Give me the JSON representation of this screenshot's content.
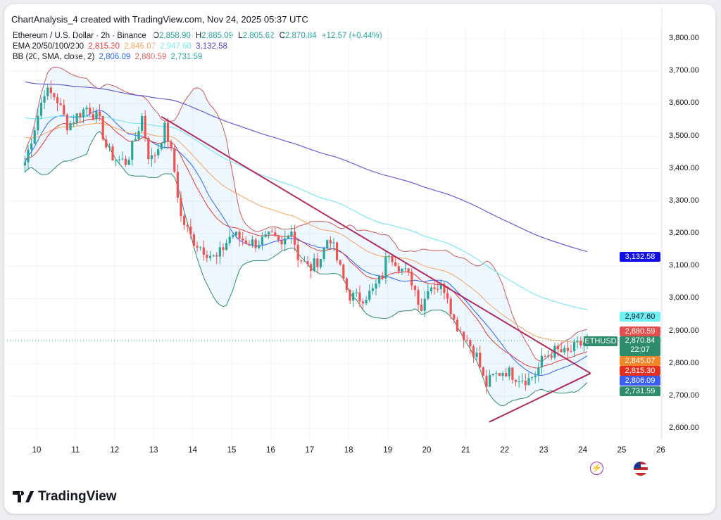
{
  "header": {
    "title": "ChartAnalysis_4 created with TradingView.com, Nov 24, 2025 05:37 UTC"
  },
  "legend": {
    "symbol": "Ethereum / U.S. Dollar · 2h · Binance",
    "o_label": "O",
    "o": "2,858.90",
    "h_label": "H",
    "h": "2,885.09",
    "l_label": "L",
    "l": "2,805.62",
    "c_label": "C",
    "c": "2,870.84",
    "change": "+12.57 (+0.44%)",
    "ema_label": "EMA 20/50/100/200",
    "ema20": "2,815.30",
    "ema50": "2,845.07",
    "ema100": "2,947.60",
    "ema200": "3,132.58",
    "bb_label": "BB (20, SMA, close, 2)",
    "bb_basis": "2,806.09",
    "bb_upper": "2,880.59",
    "bb_lower": "2,731.59"
  },
  "price_labels": {
    "ema200": "3,132.58",
    "ema100": "2,947.60",
    "bb_upper": "2,880.59",
    "last": "2,870.84",
    "countdown": "22:07",
    "symbol_tag": "ETHUSD",
    "ema50": "2,845.07",
    "ema20": "2,815.30",
    "bb_basis": "2,806.09",
    "bb_lower": "2,731.59"
  },
  "colors": {
    "up": "#26a69a",
    "down": "#ef5350",
    "ema20": "#e53935",
    "ema50": "#f7a35c",
    "ema100": "#7ee8f0",
    "ema200": "#6a5fd6",
    "bb_basis": "#2962ff",
    "bb_band": "#c95a5a",
    "bb_lower": "#2e8b6e",
    "trend": "#b0285c"
  },
  "footer": {
    "brand": "TradingView"
  },
  "chart_data": {
    "type": "candlestick",
    "title": "Ethereum / U.S. Dollar · 2h · Binance",
    "y_ticks": [
      3800,
      3700,
      3600,
      3500,
      3400,
      3300,
      3200,
      3100,
      3000,
      2900,
      2800,
      2700,
      2600
    ],
    "y_tick_labels": [
      "3,800.00",
      "3,700.00",
      "3,600.00",
      "3,500.00",
      "3,400.00",
      "3,300.00",
      "3,200.00",
      "3,100.00",
      "3,000.00",
      "2,900.00",
      "2,800.00",
      "2,700.00",
      "2,600.00"
    ],
    "x_ticks": [
      "10",
      "11",
      "12",
      "13",
      "14",
      "15",
      "16",
      "17",
      "18",
      "19",
      "20",
      "21",
      "22",
      "23",
      "24",
      "25",
      "26"
    ],
    "ylim": [
      2540,
      3840
    ],
    "close_waypoints": [
      [
        9.7,
        3420
      ],
      [
        10,
        3550
      ],
      [
        10.2,
        3640
      ],
      [
        10.5,
        3620
      ],
      [
        10.8,
        3530
      ],
      [
        11,
        3560
      ],
      [
        11.3,
        3590
      ],
      [
        11.6,
        3550
      ],
      [
        11.8,
        3460
      ],
      [
        12,
        3430
      ],
      [
        12.3,
        3420
      ],
      [
        12.5,
        3480
      ],
      [
        12.7,
        3560
      ],
      [
        12.9,
        3420
      ],
      [
        13.1,
        3460
      ],
      [
        13.3,
        3530
      ],
      [
        13.5,
        3420
      ],
      [
        13.7,
        3250
      ],
      [
        14,
        3180
      ],
      [
        14.3,
        3150
      ],
      [
        14.6,
        3120
      ],
      [
        15,
        3200
      ],
      [
        15.3,
        3180
      ],
      [
        15.6,
        3170
      ],
      [
        16,
        3190
      ],
      [
        16.3,
        3160
      ],
      [
        16.5,
        3230
      ],
      [
        16.7,
        3130
      ],
      [
        17,
        3090
      ],
      [
        17.3,
        3130
      ],
      [
        17.5,
        3200
      ],
      [
        17.7,
        3120
      ],
      [
        18,
        3010
      ],
      [
        18.3,
        3000
      ],
      [
        18.6,
        3020
      ],
      [
        18.9,
        3080
      ],
      [
        19,
        3150
      ],
      [
        19.3,
        3100
      ],
      [
        19.6,
        3060
      ],
      [
        19.9,
        2960
      ],
      [
        20,
        3040
      ],
      [
        20.2,
        3040
      ],
      [
        20.5,
        3030
      ],
      [
        20.7,
        2930
      ],
      [
        21,
        2880
      ],
      [
        21.3,
        2820
      ],
      [
        21.5,
        2730
      ],
      [
        21.7,
        2760
      ],
      [
        22,
        2780
      ],
      [
        22.3,
        2760
      ],
      [
        22.6,
        2750
      ],
      [
        22.8,
        2770
      ],
      [
        23,
        2820
      ],
      [
        23.3,
        2840
      ],
      [
        23.6,
        2830
      ],
      [
        23.8,
        2850
      ],
      [
        24.15,
        2870.84
      ]
    ],
    "ema_seed": {
      "ema20": 3430,
      "ema50": 3500,
      "ema100": 3560,
      "ema200": 3670
    },
    "trendlines": [
      {
        "name": "descending-resistance",
        "from": [
          13.2,
          3560
        ],
        "to": [
          24.2,
          2770
        ]
      },
      {
        "name": "ascending-support",
        "from": [
          21.6,
          2620
        ],
        "to": [
          24.2,
          2770
        ]
      }
    ],
    "last_price": 2870.84
  }
}
